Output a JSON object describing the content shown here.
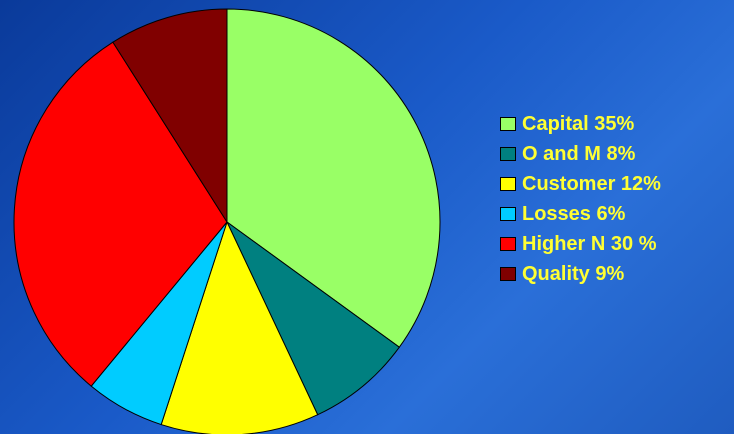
{
  "chart_data": {
    "type": "pie",
    "title": "",
    "start_angle_deg": 0,
    "direction": "clockwise",
    "legend_position": "right",
    "slices": [
      {
        "label": "Capital 35%",
        "value": 35,
        "color": "#99ff66"
      },
      {
        "label": "O and M 8%",
        "value": 8,
        "color": "#008080"
      },
      {
        "label": "Customer 12%",
        "value": 12,
        "color": "#ffff00"
      },
      {
        "label": "Losses 6%",
        "value": 6,
        "color": "#00ccff"
      },
      {
        "label": "Higher N 30 %",
        "value": 30,
        "color": "#ff0000"
      },
      {
        "label": "Quality 9%",
        "value": 9,
        "color": "#800000"
      }
    ]
  },
  "colors": {
    "legend_text": "#ffff33",
    "slice_border": "#000000"
  }
}
